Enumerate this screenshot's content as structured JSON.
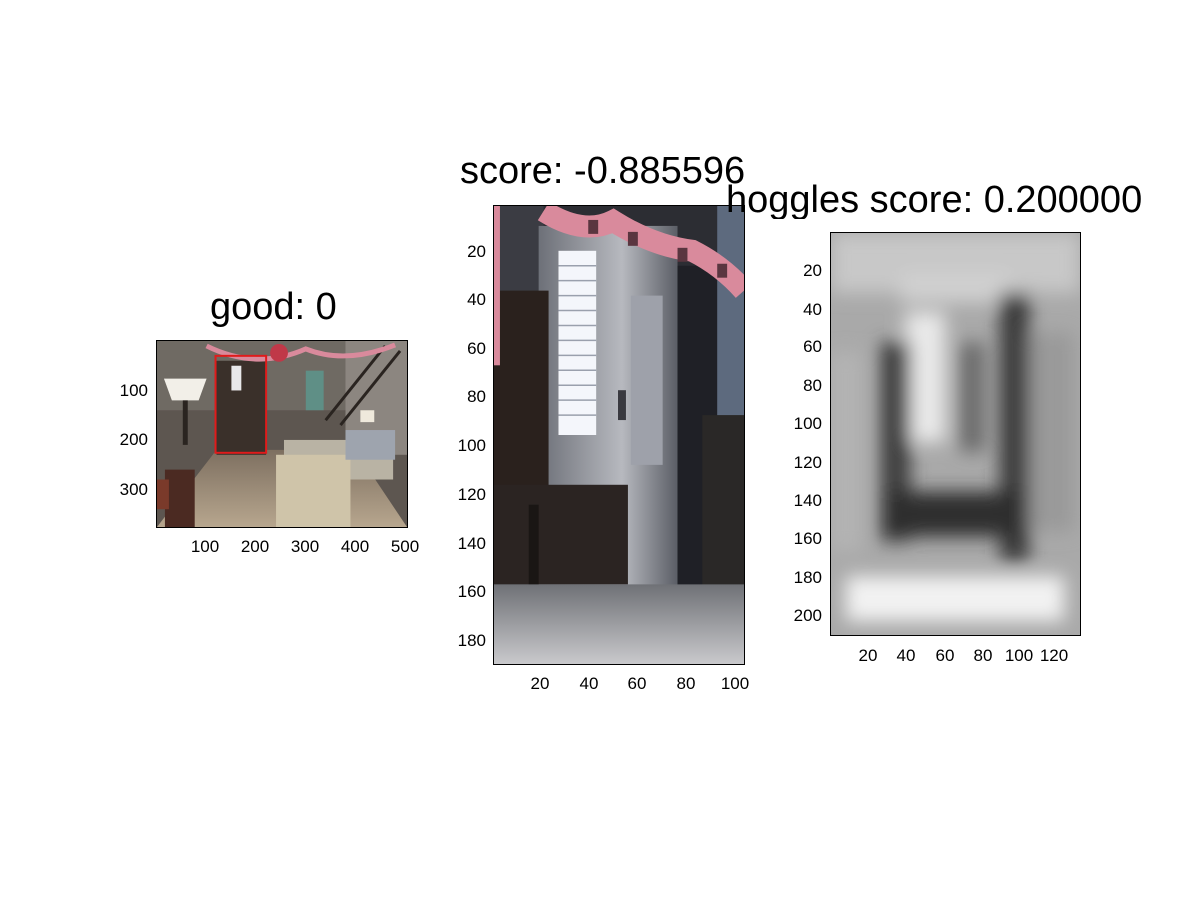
{
  "panels": {
    "good": {
      "title": "good: 0",
      "xticks": [
        "100",
        "200",
        "300",
        "400",
        "500"
      ],
      "yticks": [
        "100",
        "200",
        "300"
      ]
    },
    "crop": {
      "title": "score: -0.885596",
      "xticks": [
        "20",
        "40",
        "60",
        "80",
        "100"
      ],
      "yticks": [
        "20",
        "40",
        "60",
        "80",
        "100",
        "120",
        "140",
        "160",
        "180"
      ]
    },
    "hoggles": {
      "title": "hoggles score: 0.200000",
      "xticks": [
        "20",
        "40",
        "60",
        "80",
        "100",
        "120"
      ],
      "yticks": [
        "20",
        "40",
        "60",
        "80",
        "100",
        "120",
        "140",
        "160",
        "180",
        "200"
      ]
    }
  },
  "colors": {
    "bbox": "#e01b1b",
    "garland": "#d98a9c"
  }
}
